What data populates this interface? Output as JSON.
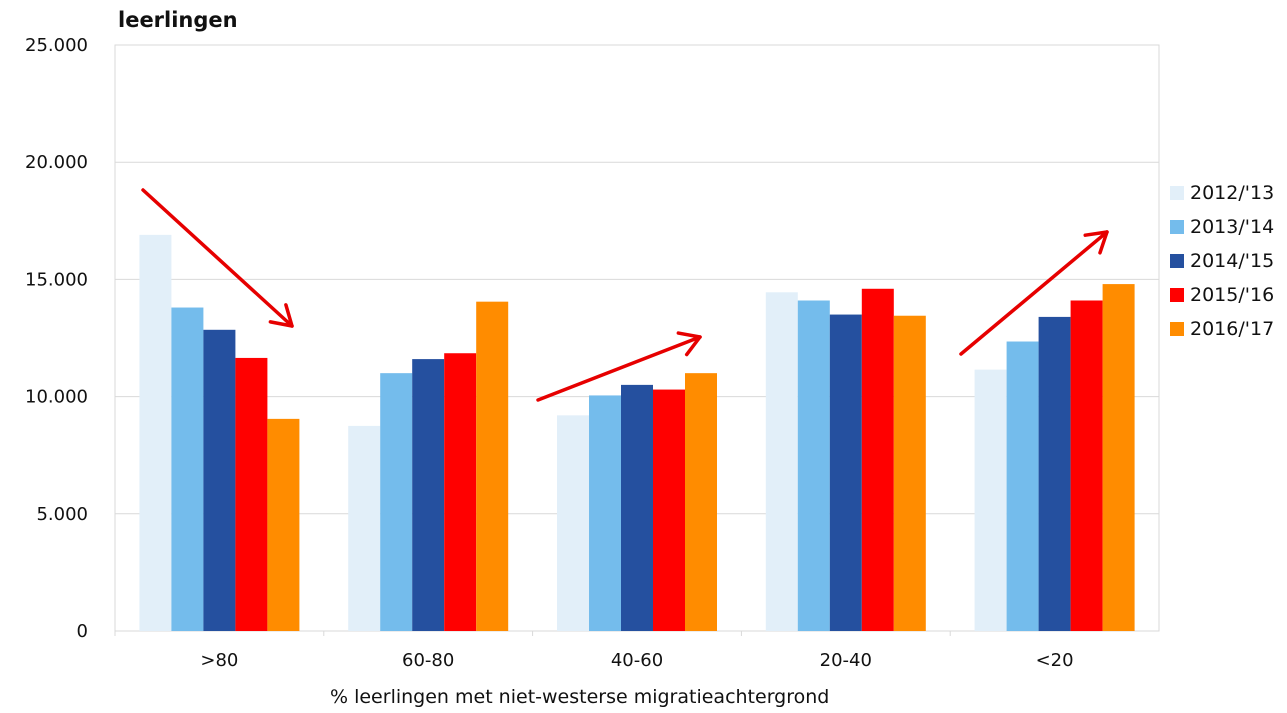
{
  "chart_data": {
    "type": "bar",
    "ylabel": "leerlingen",
    "xlabel": "% leerlingen met niet-westerse migratieachtergrond",
    "categories": [
      ">80",
      "60-80",
      "40-60",
      "20-40",
      "<20"
    ],
    "ylim": [
      0,
      25000
    ],
    "yticks": [
      0,
      5000,
      10000,
      15000,
      20000,
      25000
    ],
    "ytick_labels": [
      "0",
      "5.000",
      "10.000",
      "15.000",
      "20.000",
      "25.000"
    ],
    "grid": true,
    "legend_position": "right",
    "series": [
      {
        "name": "2012/'13",
        "color": "#e2eff9",
        "values": [
          16900,
          8750,
          9200,
          14450,
          11150
        ]
      },
      {
        "name": "2013/'14",
        "color": "#74bcec",
        "values": [
          13800,
          11000,
          10050,
          14100,
          12350
        ]
      },
      {
        "name": "2014/'15",
        "color": "#25509f",
        "values": [
          12850,
          11600,
          10500,
          13500,
          13400
        ]
      },
      {
        "name": "2015/'16",
        "color": "#ff0000",
        "values": [
          11650,
          11850,
          10300,
          14600,
          14100
        ]
      },
      {
        "name": "2016/'17",
        "color": "#ff8c00",
        "values": [
          9050,
          14050,
          11000,
          13450,
          14800
        ]
      }
    ],
    "arrow_color": "#e60000"
  }
}
